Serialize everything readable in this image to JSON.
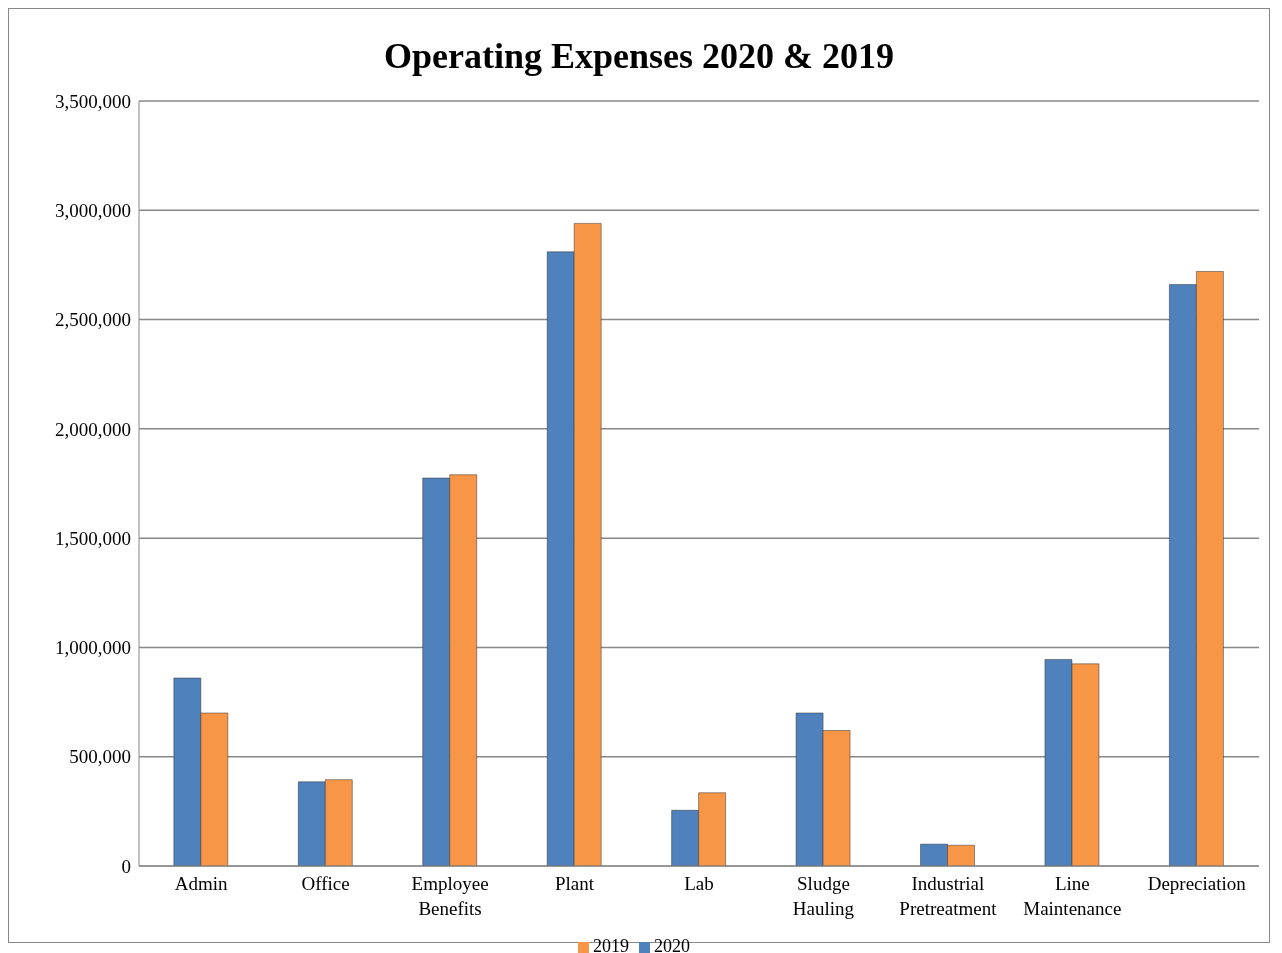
{
  "chart_data": {
    "type": "bar",
    "title": "Operating Expenses 2020 & 2019",
    "categories": [
      "Admin",
      "Office",
      "Employee Benefits",
      "Plant",
      "Lab",
      "Sludge Hauling",
      "Industrial Pretreatment",
      "Line Maintenance",
      "Depreciation"
    ],
    "series": [
      {
        "name": "2020",
        "color": "#4f81bd",
        "values": [
          860000,
          385000,
          1775000,
          2810000,
          255000,
          700000,
          100000,
          945000,
          2660000
        ]
      },
      {
        "name": "2019",
        "color": "#f79646",
        "values": [
          700000,
          395000,
          1790000,
          2940000,
          335000,
          620000,
          95000,
          925000,
          2720000
        ]
      }
    ],
    "ylim": [
      0,
      3500000
    ],
    "yticks": [
      {
        "value": 0,
        "label": "0"
      },
      {
        "value": 500000,
        "label": "500,000"
      },
      {
        "value": 1000000,
        "label": "1,000,000"
      },
      {
        "value": 1500000,
        "label": "1,500,000"
      },
      {
        "value": 2000000,
        "label": "2,000,000"
      },
      {
        "value": 2500000,
        "label": "2,500,000"
      },
      {
        "value": 3000000,
        "label": "3,000,000"
      },
      {
        "value": 3500000,
        "label": "3,500,000"
      }
    ],
    "grid": "y",
    "legend": "bottom"
  }
}
